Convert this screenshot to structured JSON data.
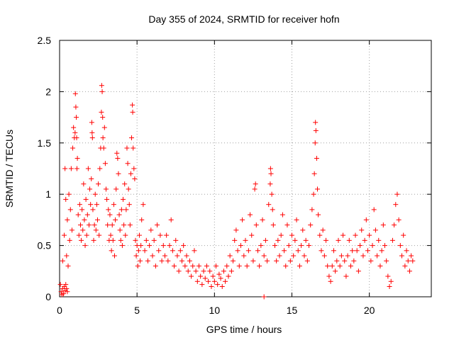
{
  "chart_data": {
    "type": "scatter",
    "title": "Day 355 of 2024, SRMTID for receiver hofn",
    "xlabel": "GPS time / hours",
    "ylabel": "SRMTID / TECUs",
    "xlim": [
      0,
      24
    ],
    "ylim": [
      0,
      2.5
    ],
    "xticks": [
      0,
      5,
      10,
      15,
      20
    ],
    "xtick_labels": [
      "0",
      "5",
      "10",
      "15",
      "20"
    ],
    "yticks": [
      0,
      0.5,
      1,
      1.5,
      2,
      2.5
    ],
    "ytick_labels": [
      "0",
      "0.5",
      "1",
      "1.5",
      "2",
      "2.5"
    ],
    "grid": true,
    "marker": "+",
    "color": "#ff0000",
    "series": [
      {
        "name": "SRMTID",
        "points": [
          [
            0.05,
            0.12
          ],
          [
            0.1,
            0.05
          ],
          [
            0.15,
            0.02
          ],
          [
            0.2,
            0.08
          ],
          [
            0.25,
            0.03
          ],
          [
            0.3,
            0.1
          ],
          [
            0.35,
            0.06
          ],
          [
            0.4,
            0.12
          ],
          [
            0.45,
            0.08
          ],
          [
            0.5,
            0.05
          ],
          [
            0.2,
            0.35
          ],
          [
            0.3,
            0.6
          ],
          [
            0.35,
            1.25
          ],
          [
            0.4,
            0.95
          ],
          [
            0.45,
            0.4
          ],
          [
            0.5,
            0.75
          ],
          [
            0.55,
            0.3
          ],
          [
            0.6,
            1.0
          ],
          [
            0.65,
            0.55
          ],
          [
            0.7,
            0.85
          ],
          [
            0.75,
            1.25
          ],
          [
            0.8,
            0.65
          ],
          [
            0.85,
            1.45
          ],
          [
            0.9,
            1.65
          ],
          [
            0.95,
            1.55
          ],
          [
            1.0,
            1.6
          ],
          [
            1.02,
            1.98
          ],
          [
            1.05,
            1.85
          ],
          [
            1.08,
            1.75
          ],
          [
            1.1,
            1.55
          ],
          [
            1.12,
            1.25
          ],
          [
            1.15,
            1.35
          ],
          [
            1.2,
            0.8
          ],
          [
            1.25,
            0.6
          ],
          [
            1.3,
            0.9
          ],
          [
            1.35,
            0.7
          ],
          [
            1.4,
            0.55
          ],
          [
            1.45,
            0.85
          ],
          [
            1.5,
            0.65
          ],
          [
            1.55,
            1.1
          ],
          [
            1.6,
            0.75
          ],
          [
            1.65,
            0.5
          ],
          [
            1.7,
            0.95
          ],
          [
            1.75,
            0.6
          ],
          [
            1.8,
            0.8
          ],
          [
            1.85,
            1.25
          ],
          [
            1.9,
            0.7
          ],
          [
            1.95,
            1.05
          ],
          [
            2.0,
            0.9
          ],
          [
            2.05,
            1.15
          ],
          [
            2.08,
            1.7
          ],
          [
            2.1,
            1.6
          ],
          [
            2.12,
            1.55
          ],
          [
            2.15,
            0.85
          ],
          [
            2.2,
            0.55
          ],
          [
            2.25,
            0.7
          ],
          [
            2.3,
            1.0
          ],
          [
            2.35,
            0.65
          ],
          [
            2.4,
            0.9
          ],
          [
            2.45,
            0.75
          ],
          [
            2.5,
            1.1
          ],
          [
            2.55,
            0.6
          ],
          [
            2.6,
            1.25
          ],
          [
            2.65,
            1.45
          ],
          [
            2.7,
            1.8
          ],
          [
            2.72,
            2.06
          ],
          [
            2.75,
            2.0
          ],
          [
            2.78,
            1.75
          ],
          [
            2.8,
            1.55
          ],
          [
            2.85,
            1.45
          ],
          [
            2.9,
            1.65
          ],
          [
            2.95,
            1.3
          ],
          [
            3.0,
            1.05
          ],
          [
            3.05,
            0.95
          ],
          [
            3.1,
            0.7
          ],
          [
            3.15,
            0.85
          ],
          [
            3.2,
            0.55
          ],
          [
            3.25,
            0.8
          ],
          [
            3.3,
            0.6
          ],
          [
            3.35,
            0.45
          ],
          [
            3.4,
            0.7
          ],
          [
            3.45,
            0.55
          ],
          [
            3.5,
            0.9
          ],
          [
            3.55,
            0.4
          ],
          [
            3.6,
            0.75
          ],
          [
            3.65,
            1.05
          ],
          [
            3.7,
            1.4
          ],
          [
            3.75,
            1.35
          ],
          [
            3.8,
            1.2
          ],
          [
            3.85,
            0.8
          ],
          [
            3.9,
            0.65
          ],
          [
            3.95,
            0.55
          ],
          [
            4.0,
            0.85
          ],
          [
            4.05,
            0.5
          ],
          [
            4.1,
            0.95
          ],
          [
            4.15,
            0.7
          ],
          [
            4.2,
            1.1
          ],
          [
            4.25,
            0.6
          ],
          [
            4.3,
            0.85
          ],
          [
            4.35,
            1.45
          ],
          [
            4.4,
            1.3
          ],
          [
            4.45,
            1.05
          ],
          [
            4.5,
            0.9
          ],
          [
            4.55,
            0.7
          ],
          [
            4.6,
            1.2
          ],
          [
            4.65,
            1.55
          ],
          [
            4.7,
            1.87
          ],
          [
            4.72,
            1.8
          ],
          [
            4.75,
            1.45
          ],
          [
            4.8,
            1.25
          ],
          [
            4.85,
            1.15
          ],
          [
            4.9,
            0.55
          ],
          [
            4.95,
            0.4
          ],
          [
            5.0,
            0.5
          ],
          [
            5.05,
            0.3
          ],
          [
            5.1,
            0.45
          ],
          [
            5.15,
            0.6
          ],
          [
            5.2,
            0.35
          ],
          [
            5.25,
            0.5
          ],
          [
            5.3,
            0.75
          ],
          [
            5.4,
            0.9
          ],
          [
            5.5,
            0.45
          ],
          [
            5.6,
            0.55
          ],
          [
            5.7,
            0.35
          ],
          [
            5.8,
            0.5
          ],
          [
            5.9,
            0.65
          ],
          [
            6.0,
            0.4
          ],
          [
            6.1,
            0.55
          ],
          [
            6.2,
            0.3
          ],
          [
            6.3,
            0.7
          ],
          [
            6.4,
            0.45
          ],
          [
            6.5,
            0.6
          ],
          [
            6.6,
            0.35
          ],
          [
            6.7,
            0.5
          ],
          [
            6.8,
            0.4
          ],
          [
            6.9,
            0.6
          ],
          [
            7.0,
            0.35
          ],
          [
            7.1,
            0.5
          ],
          [
            7.2,
            0.75
          ],
          [
            7.3,
            0.45
          ],
          [
            7.4,
            0.3
          ],
          [
            7.5,
            0.55
          ],
          [
            7.6,
            0.4
          ],
          [
            7.7,
            0.25
          ],
          [
            7.8,
            0.45
          ],
          [
            7.9,
            0.35
          ],
          [
            8.0,
            0.5
          ],
          [
            8.1,
            0.3
          ],
          [
            8.2,
            0.4
          ],
          [
            8.3,
            0.25
          ],
          [
            8.4,
            0.35
          ],
          [
            8.5,
            0.2
          ],
          [
            8.6,
            0.3
          ],
          [
            8.7,
            0.45
          ],
          [
            8.8,
            0.25
          ],
          [
            8.9,
            0.15
          ],
          [
            9.0,
            0.3
          ],
          [
            9.1,
            0.2
          ],
          [
            9.2,
            0.12
          ],
          [
            9.3,
            0.25
          ],
          [
            9.4,
            0.18
          ],
          [
            9.5,
            0.3
          ],
          [
            9.6,
            0.15
          ],
          [
            9.7,
            0.25
          ],
          [
            9.8,
            0.1
          ],
          [
            9.9,
            0.2
          ],
          [
            10.0,
            0.15
          ],
          [
            10.1,
            0.3
          ],
          [
            10.2,
            0.12
          ],
          [
            10.3,
            0.22
          ],
          [
            10.4,
            0.18
          ],
          [
            10.5,
            0.1
          ],
          [
            10.6,
            0.25
          ],
          [
            10.7,
            0.15
          ],
          [
            10.8,
            0.3
          ],
          [
            10.9,
            0.2
          ],
          [
            11.0,
            0.4
          ],
          [
            11.1,
            0.25
          ],
          [
            11.2,
            0.35
          ],
          [
            11.3,
            0.55
          ],
          [
            11.4,
            0.65
          ],
          [
            11.5,
            0.45
          ],
          [
            11.6,
            0.3
          ],
          [
            11.7,
            0.5
          ],
          [
            11.8,
            0.75
          ],
          [
            11.9,
            0.4
          ],
          [
            12.0,
            0.55
          ],
          [
            12.1,
            0.3
          ],
          [
            12.2,
            0.45
          ],
          [
            12.3,
            0.8
          ],
          [
            12.4,
            0.6
          ],
          [
            12.5,
            0.35
          ],
          [
            12.6,
            1.05
          ],
          [
            12.65,
            1.1
          ],
          [
            12.7,
            0.7
          ],
          [
            12.8,
            0.45
          ],
          [
            12.9,
            0.3
          ],
          [
            13.0,
            0.5
          ],
          [
            13.1,
            0.75
          ],
          [
            13.2,
            0.4
          ],
          [
            13.3,
            0.55
          ],
          [
            13.4,
            0.35
          ],
          [
            13.5,
            0.9
          ],
          [
            13.6,
            1.1
          ],
          [
            13.62,
            1.25
          ],
          [
            13.65,
            1.2
          ],
          [
            13.7,
            1.0
          ],
          [
            13.75,
            0.85
          ],
          [
            13.8,
            0.7
          ],
          [
            13.9,
            0.5
          ],
          [
            14.0,
            0.35
          ],
          [
            14.1,
            0.55
          ],
          [
            14.2,
            0.4
          ],
          [
            14.3,
            0.6
          ],
          [
            14.4,
            0.8
          ],
          [
            14.5,
            0.45
          ],
          [
            14.6,
            0.3
          ],
          [
            14.7,
            0.7
          ],
          [
            14.8,
            0.5
          ],
          [
            14.9,
            0.35
          ],
          [
            15.0,
            0.6
          ],
          [
            15.1,
            0.4
          ],
          [
            15.2,
            0.55
          ],
          [
            15.3,
            0.75
          ],
          [
            15.4,
            0.45
          ],
          [
            15.5,
            0.3
          ],
          [
            15.6,
            0.5
          ],
          [
            15.7,
            0.65
          ],
          [
            15.8,
            0.4
          ],
          [
            15.9,
            0.55
          ],
          [
            16.0,
            0.35
          ],
          [
            16.1,
            0.5
          ],
          [
            16.2,
            0.7
          ],
          [
            16.3,
            0.85
          ],
          [
            16.4,
            1.0
          ],
          [
            16.45,
            1.2
          ],
          [
            16.5,
            1.5
          ],
          [
            16.52,
            1.7
          ],
          [
            16.55,
            1.62
          ],
          [
            16.6,
            1.35
          ],
          [
            16.65,
            1.05
          ],
          [
            16.7,
            0.8
          ],
          [
            16.8,
            0.6
          ],
          [
            16.9,
            0.45
          ],
          [
            17.0,
            0.65
          ],
          [
            17.1,
            0.4
          ],
          [
            17.2,
            0.55
          ],
          [
            17.3,
            0.3
          ],
          [
            17.4,
            0.2
          ],
          [
            17.5,
            0.15
          ],
          [
            17.6,
            0.3
          ],
          [
            17.7,
            0.45
          ],
          [
            17.8,
            0.25
          ],
          [
            17.9,
            0.35
          ],
          [
            18.0,
            0.55
          ],
          [
            18.1,
            0.3
          ],
          [
            18.2,
            0.4
          ],
          [
            18.3,
            0.6
          ],
          [
            18.4,
            0.35
          ],
          [
            18.5,
            0.2
          ],
          [
            18.6,
            0.4
          ],
          [
            18.7,
            0.55
          ],
          [
            18.8,
            0.3
          ],
          [
            18.9,
            0.45
          ],
          [
            19.0,
            0.35
          ],
          [
            19.1,
            0.6
          ],
          [
            19.2,
            0.45
          ],
          [
            19.3,
            0.25
          ],
          [
            19.4,
            0.5
          ],
          [
            19.5,
            0.65
          ],
          [
            19.6,
            0.4
          ],
          [
            19.7,
            0.55
          ],
          [
            19.8,
            0.75
          ],
          [
            19.9,
            0.45
          ],
          [
            20.0,
            0.6
          ],
          [
            20.1,
            0.35
          ],
          [
            20.2,
            0.5
          ],
          [
            20.3,
            0.85
          ],
          [
            20.4,
            0.65
          ],
          [
            20.5,
            0.4
          ],
          [
            20.6,
            0.55
          ],
          [
            20.7,
            0.3
          ],
          [
            20.8,
            0.45
          ],
          [
            20.9,
            0.7
          ],
          [
            21.0,
            0.5
          ],
          [
            21.1,
            0.35
          ],
          [
            21.2,
            0.2
          ],
          [
            21.3,
            0.1
          ],
          [
            21.4,
            0.15
          ],
          [
            21.5,
            0.55
          ],
          [
            21.6,
            0.7
          ],
          [
            21.7,
            0.9
          ],
          [
            21.8,
            1.0
          ],
          [
            21.9,
            0.75
          ],
          [
            22.0,
            0.5
          ],
          [
            22.1,
            0.4
          ],
          [
            22.2,
            0.6
          ],
          [
            22.3,
            0.3
          ],
          [
            22.4,
            0.45
          ],
          [
            22.5,
            0.35
          ],
          [
            22.6,
            0.25
          ],
          [
            22.7,
            0.4
          ],
          [
            22.8,
            0.35
          ],
          [
            13.2,
            0.0
          ]
        ]
      }
    ]
  }
}
